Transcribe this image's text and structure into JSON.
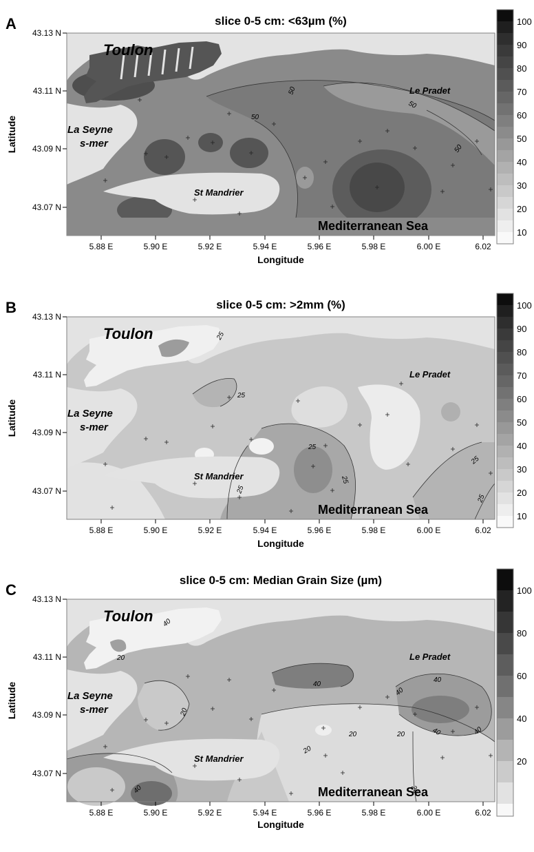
{
  "panels": [
    {
      "letter": "A",
      "title": "slice 0-5 cm: <63µm (%)",
      "colorbar": {
        "ticks": [
          "100",
          "90",
          "80",
          "70",
          "60",
          "50",
          "40",
          "30",
          "20",
          "10"
        ]
      },
      "contour_labels": [
        "50",
        "50",
        "50",
        "50"
      ]
    },
    {
      "letter": "B",
      "title": "slice 0-5 cm: >2mm (%)",
      "colorbar": {
        "ticks": [
          "100",
          "90",
          "80",
          "70",
          "60",
          "50",
          "40",
          "30",
          "20",
          "10"
        ]
      },
      "contour_labels": [
        "25",
        "25",
        "25",
        "25",
        "25",
        "25",
        "25"
      ]
    },
    {
      "letter": "C",
      "title": "slice 0-5 cm: Median Grain Size (µm)",
      "colorbar": {
        "ticks": [
          "100",
          "80",
          "60",
          "40",
          "20"
        ]
      },
      "contour_labels": [
        "20",
        "20",
        "20",
        "20",
        "20",
        "20",
        "40",
        "40",
        "40",
        "40",
        "40",
        "40",
        "40"
      ]
    }
  ],
  "axes": {
    "xlabel": "Longitude",
    "ylabel": "Latitude",
    "xticks": [
      "5.88 E",
      "5.90 E",
      "5.92 E",
      "5.94 E",
      "5.96 E",
      "5.98 E",
      "6.00 E",
      "6.02"
    ],
    "yticks": [
      "43.13 N",
      "43.11 N",
      "43.09 N",
      "43.07 N"
    ]
  },
  "places": {
    "toulon": "Toulon",
    "le_pradet": "Le Pradet",
    "la_seyne_1": "La Seyne",
    "la_seyne_2": "s-mer",
    "st_mandrier": "St Mandrier",
    "sea": "Mediterranean Sea"
  },
  "colors": {
    "land": "#e3e3e3",
    "frame": "#808080",
    "sea_base": "#8a8a8a"
  }
}
